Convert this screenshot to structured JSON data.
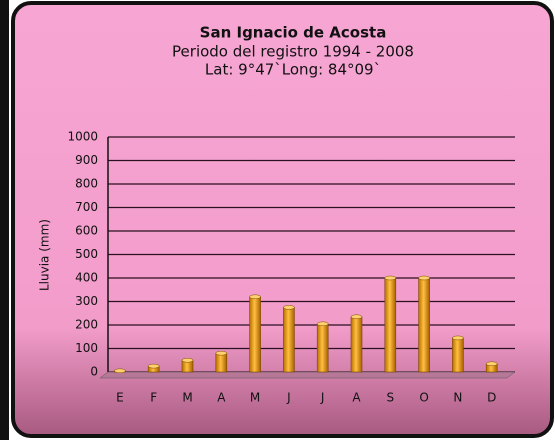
{
  "chart_data": {
    "type": "bar",
    "title": "San Ignacio de Acosta",
    "subtitle": "Periodo del registro  1994 - 2008",
    "annotation": "Lat: 9°47`Long: 84°09`",
    "y_label": "Lluvia (mm)",
    "categories": [
      "E",
      "F",
      "M",
      "A",
      "M",
      "J",
      "J",
      "A",
      "S",
      "O",
      "N",
      "D"
    ],
    "values": [
      5,
      25,
      50,
      80,
      320,
      275,
      205,
      235,
      400,
      400,
      145,
      35
    ],
    "color": "#f5a000",
    "ylim": [
      0,
      1000
    ],
    "yticks": [
      0,
      100,
      200,
      300,
      400,
      500,
      600,
      700,
      800,
      900,
      1000
    ],
    "grid": true
  }
}
